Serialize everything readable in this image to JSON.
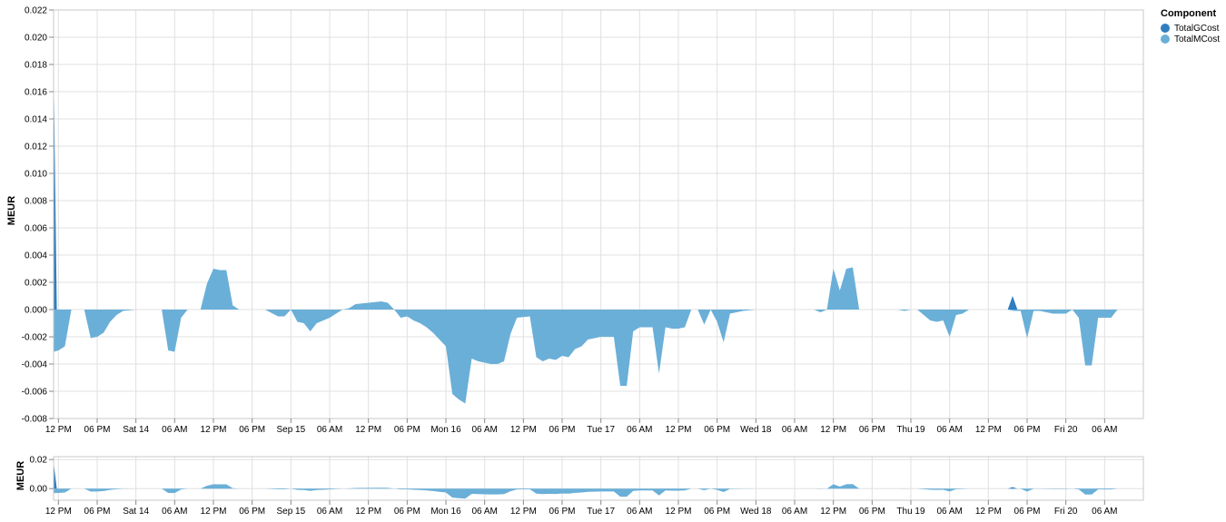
{
  "legend": {
    "title": "Component",
    "items": [
      {
        "label": "TotalGCost",
        "color": "#2f7ec0"
      },
      {
        "label": "TotalMCost",
        "color": "#6aafd8"
      }
    ]
  },
  "chart_data": [
    {
      "type": "area",
      "ylabel": "MEUR",
      "xlabel": "",
      "ylim": [
        -0.008,
        0.022
      ],
      "yticks": [
        0.022,
        0.02,
        0.018,
        0.016,
        0.014,
        0.012,
        0.01,
        0.008,
        0.006,
        0.004,
        0.002,
        0.0,
        -0.002,
        -0.004,
        -0.006,
        -0.008
      ],
      "ytick_labels": [
        "0.022",
        "0.020",
        "0.018",
        "0.016",
        "0.014",
        "0.012",
        "0.010",
        "0.008",
        "0.006",
        "0.004",
        "0.002",
        "0.000",
        "-0.002",
        "-0.004",
        "-0.006",
        "-0.008"
      ],
      "x_range": [
        "2019-09-13T11:15",
        "2019-09-20T12:00"
      ],
      "xticks": [
        "2019-09-13T12:00",
        "2019-09-13T18:00",
        "2019-09-14T00:00",
        "2019-09-14T06:00",
        "2019-09-14T12:00",
        "2019-09-14T18:00",
        "2019-09-15T00:00",
        "2019-09-15T06:00",
        "2019-09-15T12:00",
        "2019-09-15T18:00",
        "2019-09-16T00:00",
        "2019-09-16T06:00",
        "2019-09-16T12:00",
        "2019-09-16T18:00",
        "2019-09-17T00:00",
        "2019-09-17T06:00",
        "2019-09-17T12:00",
        "2019-09-17T18:00",
        "2019-09-18T00:00",
        "2019-09-18T06:00",
        "2019-09-18T12:00",
        "2019-09-18T18:00",
        "2019-09-19T00:00",
        "2019-09-19T06:00",
        "2019-09-19T12:00",
        "2019-09-19T18:00",
        "2019-09-20T00:00",
        "2019-09-20T06:00"
      ],
      "xtick_labels": [
        "12 PM",
        "06 PM",
        "Sat 14",
        "06 AM",
        "12 PM",
        "06 PM",
        "Sep 15",
        "06 AM",
        "12 PM",
        "06 PM",
        "Mon 16",
        "06 AM",
        "12 PM",
        "06 PM",
        "Tue 17",
        "06 AM",
        "12 PM",
        "06 PM",
        "Wed 18",
        "06 AM",
        "12 PM",
        "06 PM",
        "Thu 19",
        "06 AM",
        "12 PM",
        "06 PM",
        "Fri 20",
        "06 AM"
      ],
      "grid": true,
      "legend_position": "top-right",
      "series": [
        {
          "name": "TotalGCost",
          "color": "#2f7ec0",
          "points": [
            [
              "2019-09-13T11:15",
              0.0182
            ],
            [
              "2019-09-13T11:45",
              0.0
            ],
            [
              "2019-09-19T12:00",
              0.0
            ],
            [
              "2019-09-19T15:00",
              0.0
            ],
            [
              "2019-09-19T15:45",
              0.001
            ],
            [
              "2019-09-19T16:30",
              0.0
            ],
            [
              "2019-09-20T12:00",
              0.0
            ]
          ]
        },
        {
          "name": "TotalMCost",
          "color": "#6aafd8",
          "points": [
            [
              "2019-09-13T11:15",
              -0.0031
            ],
            [
              "2019-09-13T12:00",
              -0.003
            ],
            [
              "2019-09-13T13:00",
              -0.0027
            ],
            [
              "2019-09-13T14:00",
              0.0
            ],
            [
              "2019-09-13T16:00",
              0.0
            ],
            [
              "2019-09-13T17:00",
              -0.0021
            ],
            [
              "2019-09-13T18:00",
              -0.002
            ],
            [
              "2019-09-13T19:00",
              -0.0017
            ],
            [
              "2019-09-13T20:00",
              -0.0009
            ],
            [
              "2019-09-13T21:00",
              -0.0004
            ],
            [
              "2019-09-13T22:00",
              -0.0001
            ],
            [
              "2019-09-14T00:00",
              0.0
            ],
            [
              "2019-09-14T04:00",
              0.0
            ],
            [
              "2019-09-14T05:00",
              -0.003
            ],
            [
              "2019-09-14T06:00",
              -0.0031
            ],
            [
              "2019-09-14T07:00",
              -0.0006
            ],
            [
              "2019-09-14T08:00",
              0.0
            ],
            [
              "2019-09-14T10:00",
              0.0
            ],
            [
              "2019-09-14T11:00",
              0.0019
            ],
            [
              "2019-09-14T12:00",
              0.003
            ],
            [
              "2019-09-14T13:00",
              0.0029
            ],
            [
              "2019-09-14T14:00",
              0.0029
            ],
            [
              "2019-09-14T15:00",
              0.0003
            ],
            [
              "2019-09-14T16:00",
              0.0
            ],
            [
              "2019-09-14T20:00",
              0.0
            ],
            [
              "2019-09-14T22:00",
              -0.0005
            ],
            [
              "2019-09-14T23:00",
              -0.0005
            ],
            [
              "2019-09-15T00:00",
              0.0
            ],
            [
              "2019-09-15T01:00",
              -0.0009
            ],
            [
              "2019-09-15T02:00",
              -0.001
            ],
            [
              "2019-09-15T03:00",
              -0.0016
            ],
            [
              "2019-09-15T04:00",
              -0.001
            ],
            [
              "2019-09-15T05:00",
              -0.0008
            ],
            [
              "2019-09-15T06:00",
              -0.0006
            ],
            [
              "2019-09-15T07:00",
              -0.0003
            ],
            [
              "2019-09-15T08:00",
              0.0
            ],
            [
              "2019-09-15T09:00",
              0.0001
            ],
            [
              "2019-09-15T10:00",
              0.0004
            ],
            [
              "2019-09-15T12:00",
              0.0005
            ],
            [
              "2019-09-15T14:00",
              0.0006
            ],
            [
              "2019-09-15T15:00",
              0.0005
            ],
            [
              "2019-09-15T16:00",
              0.0
            ],
            [
              "2019-09-15T17:00",
              -0.0006
            ],
            [
              "2019-09-15T18:00",
              -0.0005
            ],
            [
              "2019-09-15T19:00",
              -0.0008
            ],
            [
              "2019-09-15T20:00",
              -0.001
            ],
            [
              "2019-09-15T21:00",
              -0.0013
            ],
            [
              "2019-09-15T22:00",
              -0.0017
            ],
            [
              "2019-09-15T23:00",
              -0.0022
            ],
            [
              "2019-09-16T00:00",
              -0.0027
            ],
            [
              "2019-09-16T01:00",
              -0.0062
            ],
            [
              "2019-09-16T02:00",
              -0.0066
            ],
            [
              "2019-09-16T03:00",
              -0.0069
            ],
            [
              "2019-09-16T04:00",
              -0.0036
            ],
            [
              "2019-09-16T05:00",
              -0.0038
            ],
            [
              "2019-09-16T06:00",
              -0.0039
            ],
            [
              "2019-09-16T07:00",
              -0.004
            ],
            [
              "2019-09-16T08:00",
              -0.004
            ],
            [
              "2019-09-16T09:00",
              -0.0038
            ],
            [
              "2019-09-16T10:00",
              -0.0018
            ],
            [
              "2019-09-16T11:00",
              -0.0006
            ],
            [
              "2019-09-16T13:00",
              -0.0005
            ],
            [
              "2019-09-16T14:00",
              -0.0035
            ],
            [
              "2019-09-16T15:00",
              -0.0038
            ],
            [
              "2019-09-16T16:00",
              -0.0036
            ],
            [
              "2019-09-16T17:00",
              -0.0037
            ],
            [
              "2019-09-16T18:00",
              -0.0034
            ],
            [
              "2019-09-16T19:00",
              -0.0035
            ],
            [
              "2019-09-16T20:00",
              -0.0029
            ],
            [
              "2019-09-16T21:00",
              -0.0027
            ],
            [
              "2019-09-16T22:00",
              -0.0022
            ],
            [
              "2019-09-17T00:00",
              -0.002
            ],
            [
              "2019-09-17T02:00",
              -0.002
            ],
            [
              "2019-09-17T03:00",
              -0.0056
            ],
            [
              "2019-09-17T04:00",
              -0.0056
            ],
            [
              "2019-09-17T05:00",
              -0.0016
            ],
            [
              "2019-09-17T06:00",
              -0.0013
            ],
            [
              "2019-09-17T08:00",
              -0.0013
            ],
            [
              "2019-09-17T09:00",
              -0.0047
            ],
            [
              "2019-09-17T10:00",
              -0.0013
            ],
            [
              "2019-09-17T11:00",
              -0.0014
            ],
            [
              "2019-09-17T12:00",
              -0.0014
            ],
            [
              "2019-09-17T13:00",
              -0.0013
            ],
            [
              "2019-09-17T14:00",
              0.0
            ],
            [
              "2019-09-17T15:00",
              0.0
            ],
            [
              "2019-09-17T16:00",
              -0.0011
            ],
            [
              "2019-09-17T17:00",
              0.0
            ],
            [
              "2019-09-17T18:00",
              -0.0009
            ],
            [
              "2019-09-17T19:00",
              -0.0024
            ],
            [
              "2019-09-17T20:00",
              -0.0003
            ],
            [
              "2019-09-17T22:00",
              -0.0001
            ],
            [
              "2019-09-18T00:00",
              0.0
            ],
            [
              "2019-09-18T09:00",
              0.0
            ],
            [
              "2019-09-18T10:00",
              -0.0002
            ],
            [
              "2019-09-18T11:00",
              0.0
            ],
            [
              "2019-09-18T12:00",
              0.003
            ],
            [
              "2019-09-18T13:00",
              0.0014
            ],
            [
              "2019-09-18T14:00",
              0.003
            ],
            [
              "2019-09-18T15:00",
              0.0031
            ],
            [
              "2019-09-18T16:00",
              0.0
            ],
            [
              "2019-09-18T22:00",
              0.0
            ],
            [
              "2019-09-18T23:00",
              -0.0001
            ],
            [
              "2019-09-19T00:00",
              0.0
            ],
            [
              "2019-09-19T01:00",
              0.0
            ],
            [
              "2019-09-19T02:00",
              -0.0004
            ],
            [
              "2019-09-19T03:00",
              -0.0008
            ],
            [
              "2019-09-19T04:00",
              -0.0009
            ],
            [
              "2019-09-19T05:00",
              -0.0008
            ],
            [
              "2019-09-19T06:00",
              -0.002
            ],
            [
              "2019-09-19T07:00",
              -0.0004
            ],
            [
              "2019-09-19T08:00",
              -0.0003
            ],
            [
              "2019-09-19T09:00",
              0.0
            ],
            [
              "2019-09-19T15:00",
              0.0
            ],
            [
              "2019-09-19T16:00",
              -0.0001
            ],
            [
              "2019-09-19T17:00",
              -0.0001
            ],
            [
              "2019-09-19T18:00",
              -0.0021
            ],
            [
              "2019-09-19T19:00",
              -0.0001
            ],
            [
              "2019-09-19T20:00",
              -0.0001
            ],
            [
              "2019-09-19T22:00",
              -0.0003
            ],
            [
              "2019-09-20T00:00",
              -0.0003
            ],
            [
              "2019-09-20T01:00",
              0.0
            ],
            [
              "2019-09-20T02:00",
              -0.0006
            ],
            [
              "2019-09-20T03:00",
              -0.0041
            ],
            [
              "2019-09-20T04:00",
              -0.0041
            ],
            [
              "2019-09-20T05:00",
              -0.0006
            ],
            [
              "2019-09-20T07:00",
              -0.0006
            ],
            [
              "2019-09-20T08:00",
              0.0
            ],
            [
              "2019-09-20T12:00",
              0.0
            ]
          ]
        }
      ]
    },
    {
      "type": "area",
      "ylabel": "MEUR",
      "ylim": [
        -0.008,
        0.022
      ],
      "yticks": [
        0.02,
        0.0
      ],
      "ytick_labels": [
        "0.02",
        "0.00"
      ],
      "grid": true,
      "xtick_labels": [
        "12 PM",
        "06 PM",
        "Sat 14",
        "06 AM",
        "12 PM",
        "06 PM",
        "Sep 15",
        "06 AM",
        "12 PM",
        "06 PM",
        "Mon 16",
        "06 AM",
        "12 PM",
        "06 PM",
        "Tue 17",
        "06 AM",
        "12 PM",
        "06 PM",
        "Wed 18",
        "06 AM",
        "12 PM",
        "06 PM",
        "Thu 19",
        "06 AM",
        "12 PM",
        "06 PM",
        "Fri 20",
        "06 AM"
      ],
      "series_ref": "same as main chart"
    }
  ]
}
